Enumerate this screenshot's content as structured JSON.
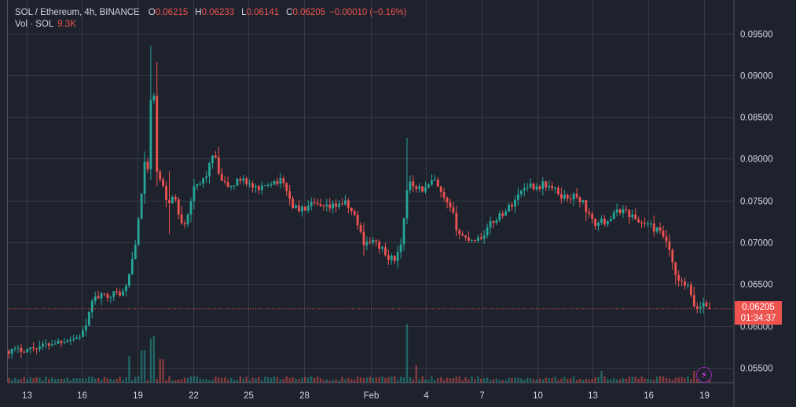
{
  "legend": {
    "symbol": "SOL / Ethereum, 4h, BINANCE",
    "o_label": "O",
    "o_value": "0.06215",
    "h_label": "H",
    "h_value": "0.06233",
    "l_label": "L",
    "l_value": "0.06141",
    "c_label": "C",
    "c_value": "0.06205",
    "change": "−0.00010 (−0.16%)",
    "vol_label": "Vol · SOL",
    "vol_value": "9.3K"
  },
  "price_tag": {
    "price": "0.06205",
    "countdown": "01:34:37"
  },
  "colors": {
    "up": "#26a69a",
    "down": "#ef5350",
    "bg": "#1e222d",
    "grid": "#363a45"
  },
  "flash_icon": "lightning-icon",
  "chart_data": {
    "type": "candlestick",
    "title": "SOL / Ethereum, 4h, BINANCE",
    "y_ticks": [
      "0.05500",
      "0.06000",
      "0.06500",
      "0.07000",
      "0.07500",
      "0.08000",
      "0.08500",
      "0.09000",
      "0.09500"
    ],
    "y_tick_values": [
      0.055,
      0.06,
      0.065,
      0.07,
      0.075,
      0.08,
      0.085,
      0.09,
      0.095
    ],
    "ylim": [
      0.0532,
      0.099
    ],
    "x_ticks": [
      "13",
      "16",
      "19",
      "22",
      "25",
      "28",
      "Feb",
      "4",
      "7",
      "10",
      "13",
      "16",
      "19"
    ],
    "x_tick_days": [
      0,
      3,
      6,
      9,
      12,
      15,
      18.58,
      21.58,
      24.58,
      27.58,
      30.58,
      33.58,
      36.58
    ],
    "xlim": [
      -1,
      38.2
    ],
    "last_price": 0.06205,
    "close_anchors": [
      [
        -1.0,
        0.057
      ],
      [
        0.0,
        0.0572
      ],
      [
        1.0,
        0.0577
      ],
      [
        2.0,
        0.0583
      ],
      [
        2.8,
        0.0586
      ],
      [
        3.3,
        0.06
      ],
      [
        3.5,
        0.0632
      ],
      [
        4.5,
        0.0638
      ],
      [
        5.3,
        0.064
      ],
      [
        5.6,
        0.0665
      ],
      [
        5.9,
        0.0703
      ],
      [
        6.1,
        0.0732
      ],
      [
        6.3,
        0.0778
      ],
      [
        6.45,
        0.081
      ],
      [
        6.6,
        0.0775
      ],
      [
        6.7,
        0.086
      ],
      [
        6.85,
        0.0905
      ],
      [
        7.0,
        0.0785
      ],
      [
        7.3,
        0.077
      ],
      [
        7.6,
        0.0748
      ],
      [
        8.0,
        0.0755
      ],
      [
        8.3,
        0.0727
      ],
      [
        8.6,
        0.0725
      ],
      [
        9.0,
        0.0762
      ],
      [
        9.4,
        0.077
      ],
      [
        9.8,
        0.0785
      ],
      [
        10.1,
        0.0808
      ],
      [
        10.5,
        0.0772
      ],
      [
        11.0,
        0.0766
      ],
      [
        11.7,
        0.0778
      ],
      [
        12.2,
        0.0765
      ],
      [
        12.6,
        0.076
      ],
      [
        13.0,
        0.0772
      ],
      [
        13.6,
        0.0774
      ],
      [
        14.0,
        0.0768
      ],
      [
        14.3,
        0.0745
      ],
      [
        14.8,
        0.0738
      ],
      [
        15.5,
        0.0745
      ],
      [
        16.0,
        0.074
      ],
      [
        16.5,
        0.0742
      ],
      [
        17.0,
        0.0748
      ],
      [
        17.3,
        0.0745
      ],
      [
        17.8,
        0.0728
      ],
      [
        18.2,
        0.07
      ],
      [
        18.6,
        0.0702
      ],
      [
        19.1,
        0.0695
      ],
      [
        19.5,
        0.068
      ],
      [
        20.0,
        0.0682
      ],
      [
        20.3,
        0.07
      ],
      [
        20.5,
        0.076
      ],
      [
        20.7,
        0.0775
      ],
      [
        21.0,
        0.0768
      ],
      [
        21.5,
        0.0762
      ],
      [
        22.0,
        0.0775
      ],
      [
        22.4,
        0.0756
      ],
      [
        22.7,
        0.0745
      ],
      [
        23.0,
        0.0735
      ],
      [
        23.3,
        0.0712
      ],
      [
        23.7,
        0.0705
      ],
      [
        24.2,
        0.0704
      ],
      [
        24.6,
        0.0707
      ],
      [
        25.0,
        0.072
      ],
      [
        25.5,
        0.0732
      ],
      [
        26.0,
        0.074
      ],
      [
        26.5,
        0.0755
      ],
      [
        27.0,
        0.077
      ],
      [
        27.5,
        0.0766
      ],
      [
        28.0,
        0.077
      ],
      [
        28.5,
        0.0762
      ],
      [
        29.0,
        0.0754
      ],
      [
        29.5,
        0.0755
      ],
      [
        30.0,
        0.075
      ],
      [
        30.3,
        0.0735
      ],
      [
        30.6,
        0.0722
      ],
      [
        31.2,
        0.0725
      ],
      [
        31.7,
        0.0732
      ],
      [
        32.1,
        0.074
      ],
      [
        32.5,
        0.0735
      ],
      [
        33.0,
        0.0725
      ],
      [
        33.5,
        0.0722
      ],
      [
        34.0,
        0.0715
      ],
      [
        34.5,
        0.0705
      ],
      [
        34.8,
        0.068
      ],
      [
        35.1,
        0.0655
      ],
      [
        35.4,
        0.065
      ],
      [
        35.7,
        0.0648
      ],
      [
        36.0,
        0.0625
      ],
      [
        36.3,
        0.062
      ],
      [
        36.6,
        0.063
      ],
      [
        36.9,
        0.062
      ]
    ],
    "wick_extremes": [
      {
        "day": 6.8,
        "high": 0.0935,
        "low": 0.0775
      },
      {
        "day": 7.7,
        "high": 0.0785,
        "low": 0.071
      },
      {
        "day": 20.6,
        "high": 0.0825,
        "low": 0.0745
      }
    ],
    "volume_spikes": [
      {
        "day": 5.5,
        "rel": 0.45
      },
      {
        "day": 6.3,
        "rel": 0.55
      },
      {
        "day": 6.7,
        "rel": 0.75
      },
      {
        "day": 6.9,
        "rel": 0.8
      },
      {
        "day": 7.3,
        "rel": 0.4
      },
      {
        "day": 20.5,
        "rel": 1.0
      },
      {
        "day": 21.0,
        "rel": 0.3
      },
      {
        "day": 31.0,
        "rel": 0.2
      },
      {
        "day": 36.1,
        "rel": 0.2
      }
    ]
  }
}
